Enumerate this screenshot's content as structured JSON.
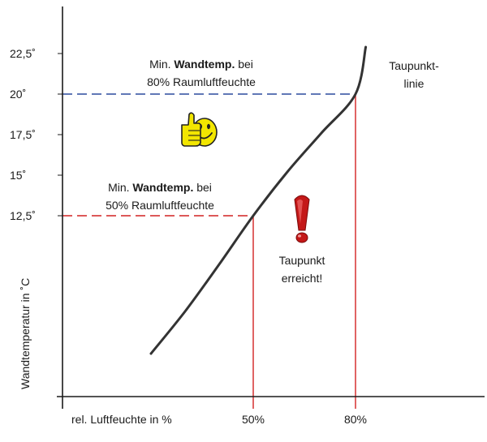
{
  "chart_data": {
    "type": "line",
    "xlabel": "rel. Luftfeuchte in %",
    "ylabel": "Wandtemperatur in ˚C",
    "y_ticks": [
      {
        "value": 12.5,
        "label": "12,5˚"
      },
      {
        "value": 15,
        "label": "15˚"
      },
      {
        "value": 17.5,
        "label": "17,5˚"
      },
      {
        "value": 20,
        "label": "20˚"
      },
      {
        "value": 22.5,
        "label": "22,5˚"
      }
    ],
    "x_ticks": [
      {
        "value": 50,
        "label": "50%"
      },
      {
        "value": 80,
        "label": "80%"
      }
    ],
    "xlim": [
      0,
      100
    ],
    "ylim": [
      0,
      24
    ],
    "series": [
      {
        "name": "Taupunktlinie",
        "x": [
          20,
          30,
          40,
          50,
          60,
          70,
          80,
          83
        ],
        "y": [
          4.0,
          6.6,
          9.5,
          12.5,
          15.2,
          17.6,
          20.0,
          22.9
        ]
      }
    ],
    "reference_lines": [
      {
        "x": 50,
        "y": 12.5,
        "color": "#d22222",
        "style": "dashed"
      },
      {
        "x": 80,
        "y": 20,
        "color": "#2c4a9e",
        "style": "dashed"
      }
    ],
    "annotations": {
      "upper": {
        "prefix": "Min. ",
        "bold": "Wandtemp.",
        "suffix": " bei",
        "line2": "80% Raumluftfeuchte"
      },
      "lower": {
        "prefix": "Min. ",
        "bold": "Wandtemp.",
        "suffix": " bei",
        "line2": "50% Raumluftfeuchte"
      },
      "curve_label": [
        "Taupunkt-",
        "linie"
      ],
      "warning": [
        "Taupunkt",
        "erreicht!"
      ]
    },
    "colors": {
      "curve": "#333333",
      "red": "#d22222",
      "blue": "#2c4a9e",
      "axis": "#1a1a1a",
      "smiley": "#f2e600"
    },
    "icons": [
      "thumbs-up-smiley-icon",
      "exclamation-mark-icon"
    ]
  }
}
